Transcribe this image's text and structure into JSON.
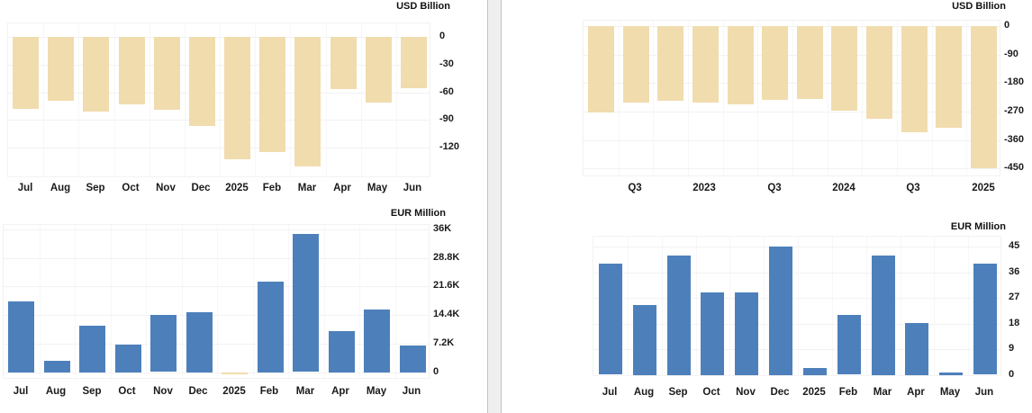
{
  "page": {
    "background": "#ffffff",
    "divider_color": "#efefef",
    "bar_tan": "#f1dcae",
    "bar_blue": "#4d80bb"
  },
  "chart_data": [
    {
      "name": "balance-of-trade-monthly",
      "type": "bar",
      "unit_label": "USD Billion",
      "legend": "none",
      "grid": true,
      "categories": [
        "Jul",
        "Aug",
        "Sep",
        "Oct",
        "Nov",
        "Dec",
        "2025",
        "Feb",
        "Mar",
        "Apr",
        "May",
        "Jun"
      ],
      "values": [
        -78,
        -69,
        -81,
        -73,
        -79,
        -97,
        -133,
        -125,
        -140,
        -57,
        -71,
        -56
      ],
      "ytick_values": [
        0,
        -30,
        -60,
        -90,
        -120
      ],
      "ytick_labels": [
        "0",
        "-30",
        "-60",
        "-90",
        "-120"
      ],
      "ylim": [
        -156,
        0
      ],
      "bar_color": "#f1dcae"
    },
    {
      "name": "current-account-quarterly",
      "type": "bar",
      "unit_label": "USD Billion",
      "legend": "none",
      "grid": true,
      "categories": [
        "",
        "Q3",
        "",
        "2023",
        "",
        "Q3",
        "",
        "2024",
        "",
        "Q3",
        "",
        "2025"
      ],
      "values": [
        -273,
        -242,
        -237,
        -242,
        -246,
        -232,
        -229,
        -267,
        -294,
        -334,
        -320,
        -450
      ],
      "ytick_values": [
        0,
        -90,
        -180,
        -270,
        -360,
        -450
      ],
      "ytick_labels": [
        "0",
        "-90",
        "-180",
        "-270",
        "-360",
        "-450"
      ],
      "ylim": [
        -477,
        0
      ],
      "bar_color": "#f1dcae"
    },
    {
      "name": "trade-balance-eur-monthly",
      "type": "bar",
      "unit_label": "EUR Million",
      "legend": "none",
      "grid": true,
      "categories": [
        "Jul",
        "Aug",
        "Sep",
        "Oct",
        "Nov",
        "Dec",
        "2025",
        "Feb",
        "Mar",
        "Apr",
        "May",
        "Jun"
      ],
      "values": [
        17900,
        2900,
        11800,
        7000,
        14400,
        15100,
        -300,
        22800,
        34800,
        10400,
        15900,
        6800
      ],
      "ytick_values": [
        36000,
        28800,
        21600,
        14400,
        7200,
        0
      ],
      "ytick_labels": [
        "36K",
        "28.8K",
        "21.6K",
        "14.4K",
        "7.2K",
        "0"
      ],
      "ylim": [
        -1900,
        37100
      ],
      "bar_color": "#4d80bb",
      "negative_color": "#f1dcae"
    },
    {
      "name": "current-account-eur-monthly",
      "type": "bar",
      "unit_label": "EUR Million",
      "legend": "none",
      "grid": true,
      "categories": [
        "Jul",
        "Aug",
        "Sep",
        "Oct",
        "Nov",
        "Dec",
        "2025",
        "Feb",
        "Mar",
        "Apr",
        "May",
        "Jun"
      ],
      "values": [
        39,
        24.5,
        42,
        29,
        29,
        45.2,
        2.5,
        21,
        42,
        18.3,
        1,
        39
      ],
      "ytick_values": [
        45,
        36,
        27,
        18,
        9,
        0
      ],
      "ytick_labels": [
        "45",
        "36",
        "27",
        "18",
        "9",
        "0"
      ],
      "ylim": [
        0,
        46.6
      ],
      "bar_color": "#4d80bb"
    }
  ]
}
